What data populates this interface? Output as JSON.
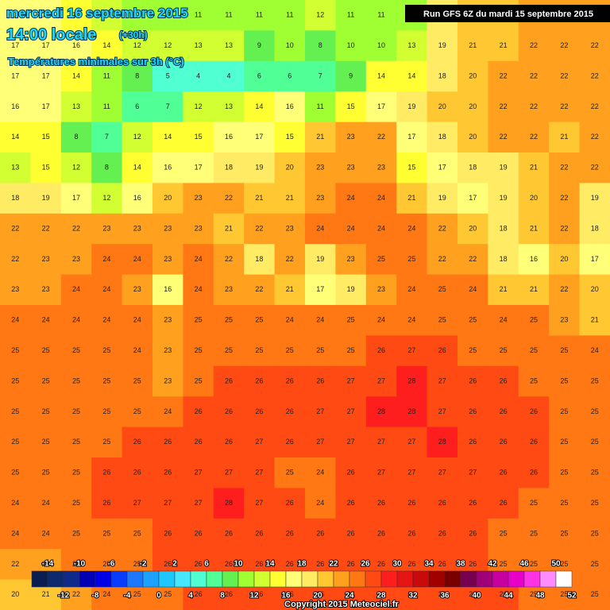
{
  "header": {
    "date": "mercredi 16 septembre 2015",
    "time": "14:00 locale",
    "lead": "(+30h)",
    "field": "Températures minimales sur 3h (°C)",
    "run": "Run GFS 6Z du mardi 15 septembre 2015"
  },
  "grid": {
    "rows": [
      [
        17,
        16,
        15,
        12,
        11,
        11,
        11,
        11,
        11,
        11,
        12,
        11,
        11,
        11,
        19,
        21,
        21,
        22,
        22,
        22
      ],
      [
        17,
        17,
        16,
        14,
        12,
        12,
        13,
        13,
        9,
        10,
        8,
        10,
        10,
        13,
        19,
        21,
        21,
        22,
        22,
        22
      ],
      [
        17,
        17,
        14,
        11,
        8,
        5,
        4,
        4,
        6,
        6,
        7,
        9,
        14,
        14,
        18,
        20,
        22,
        22,
        22,
        22
      ],
      [
        16,
        17,
        13,
        11,
        6,
        7,
        12,
        13,
        14,
        16,
        11,
        15,
        17,
        19,
        20,
        20,
        22,
        22,
        22,
        22
      ],
      [
        14,
        15,
        8,
        7,
        12,
        14,
        15,
        16,
        17,
        15,
        21,
        23,
        22,
        17,
        18,
        20,
        22,
        22,
        21,
        22
      ],
      [
        13,
        15,
        12,
        8,
        14,
        16,
        17,
        18,
        19,
        20,
        23,
        23,
        23,
        15,
        17,
        18,
        19,
        21,
        22,
        22
      ],
      [
        18,
        19,
        17,
        12,
        16,
        20,
        23,
        22,
        21,
        21,
        23,
        24,
        24,
        21,
        19,
        17,
        19,
        20,
        22,
        19
      ],
      [
        22,
        22,
        22,
        23,
        23,
        23,
        23,
        21,
        22,
        23,
        24,
        24,
        24,
        24,
        22,
        20,
        18,
        21,
        22,
        18
      ],
      [
        22,
        23,
        23,
        24,
        24,
        23,
        24,
        22,
        18,
        22,
        19,
        23,
        25,
        25,
        22,
        22,
        18,
        16,
        20,
        17
      ],
      [
        23,
        23,
        24,
        24,
        23,
        16,
        24,
        23,
        22,
        21,
        17,
        19,
        23,
        24,
        25,
        24,
        21,
        21,
        22,
        20
      ],
      [
        24,
        24,
        24,
        24,
        24,
        23,
        25,
        25,
        25,
        24,
        24,
        25,
        24,
        24,
        25,
        25,
        24,
        25,
        23,
        21
      ],
      [
        25,
        25,
        25,
        25,
        24,
        23,
        25,
        25,
        25,
        25,
        25,
        25,
        26,
        27,
        26,
        25,
        25,
        25,
        25,
        24
      ],
      [
        25,
        25,
        25,
        25,
        25,
        23,
        25,
        26,
        26,
        26,
        26,
        27,
        27,
        28,
        27,
        26,
        26,
        25,
        25,
        25
      ],
      [
        25,
        25,
        25,
        25,
        25,
        24,
        26,
        26,
        26,
        26,
        27,
        27,
        28,
        28,
        27,
        26,
        26,
        26,
        25,
        25
      ],
      [
        25,
        25,
        25,
        25,
        26,
        26,
        26,
        26,
        27,
        26,
        27,
        27,
        27,
        27,
        28,
        26,
        26,
        26,
        25,
        25
      ],
      [
        25,
        25,
        25,
        26,
        26,
        26,
        27,
        27,
        27,
        25,
        24,
        26,
        27,
        27,
        27,
        27,
        26,
        26,
        25,
        25
      ],
      [
        24,
        24,
        25,
        26,
        27,
        27,
        27,
        28,
        27,
        26,
        24,
        26,
        26,
        26,
        26,
        26,
        26,
        25,
        25,
        25
      ],
      [
        24,
        24,
        25,
        25,
        25,
        26,
        26,
        26,
        26,
        26,
        26,
        26,
        26,
        26,
        26,
        26,
        25,
        25,
        25,
        25
      ],
      [
        22,
        23,
        24,
        25,
        25,
        26,
        26,
        26,
        26,
        26,
        26,
        26,
        26,
        26,
        26,
        26,
        25,
        25,
        25,
        25
      ],
      [
        20,
        21,
        22,
        24,
        25,
        25,
        26,
        26,
        26,
        26,
        26,
        26,
        26,
        26,
        26,
        26,
        26,
        25,
        25,
        25
      ]
    ]
  },
  "colorbar": {
    "top_labels": [
      -14,
      -10,
      -6,
      -2,
      2,
      6,
      10,
      14,
      18,
      22,
      26,
      30,
      34,
      38,
      42,
      46,
      50
    ],
    "bottom_labels": [
      -12,
      -8,
      -4,
      0,
      4,
      8,
      12,
      16,
      20,
      24,
      28,
      32,
      36,
      40,
      44,
      48,
      52
    ],
    "colors": [
      "#0a1e50",
      "#0d2a6e",
      "#102a8a",
      "#0000b4",
      "#0000e6",
      "#0a3cff",
      "#1e78ff",
      "#1ea0ff",
      "#1ec8ff",
      "#46e6ff",
      "#50ffd2",
      "#50ff96",
      "#64f050",
      "#a0ff32",
      "#d2ff32",
      "#ffff32",
      "#ffff78",
      "#ffeb64",
      "#ffc832",
      "#ffa01e",
      "#ff7814",
      "#ff4a14",
      "#ff1e1e",
      "#e61414",
      "#c80a0a",
      "#a00000",
      "#780000",
      "#780050",
      "#a00078",
      "#c800a0",
      "#e600c8",
      "#ff32e6",
      "#ff8cff",
      "#ffffff"
    ]
  },
  "copyright": "Copyright 2015 Meteociel.fr"
}
